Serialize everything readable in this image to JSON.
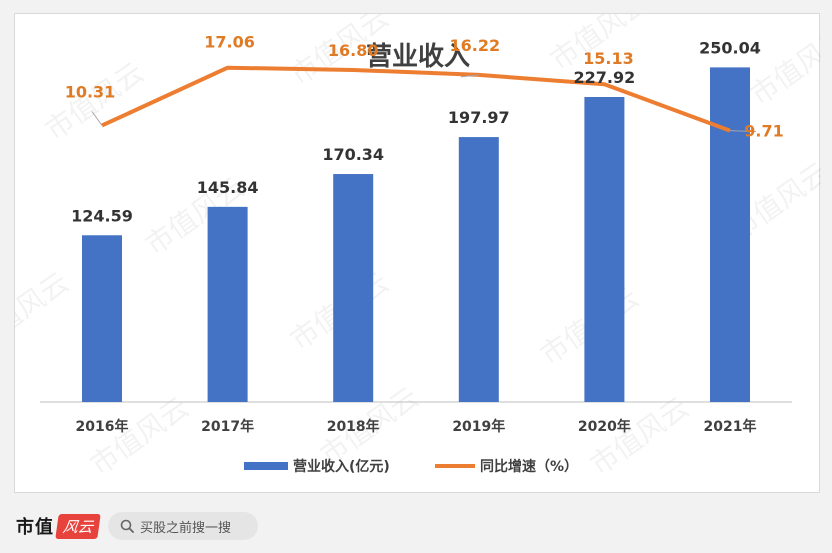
{
  "chart_data": {
    "type": "bar+line",
    "title": "营业收入",
    "categories": [
      "2016年",
      "2017年",
      "2018年",
      "2019年",
      "2020年",
      "2021年"
    ],
    "series": [
      {
        "name": "营业收入(亿元)",
        "type": "bar",
        "color": "#4472c4",
        "values": [
          124.59,
          145.84,
          170.34,
          197.97,
          227.92,
          250.04
        ],
        "labels": [
          "124.59",
          "145.84",
          "170.34",
          "197.97",
          "227.92",
          "250.04"
        ]
      },
      {
        "name": "同比增速（%）",
        "type": "line",
        "color": "#ed7d31",
        "values": [
          10.31,
          17.06,
          16.8,
          16.22,
          15.13,
          9.71
        ],
        "labels": [
          "10.31",
          "17.06",
          "16.80",
          "16.22",
          "15.13",
          "9.71"
        ]
      }
    ],
    "bar_axis": [
      0,
      275
    ],
    "line_axis": [
      -22,
      21
    ],
    "grid": false,
    "legend": "bottom"
  },
  "watermark": "市值风云",
  "footer": {
    "brand": "市值",
    "brand_badge": "风云",
    "search_label": "买股之前搜一搜"
  }
}
